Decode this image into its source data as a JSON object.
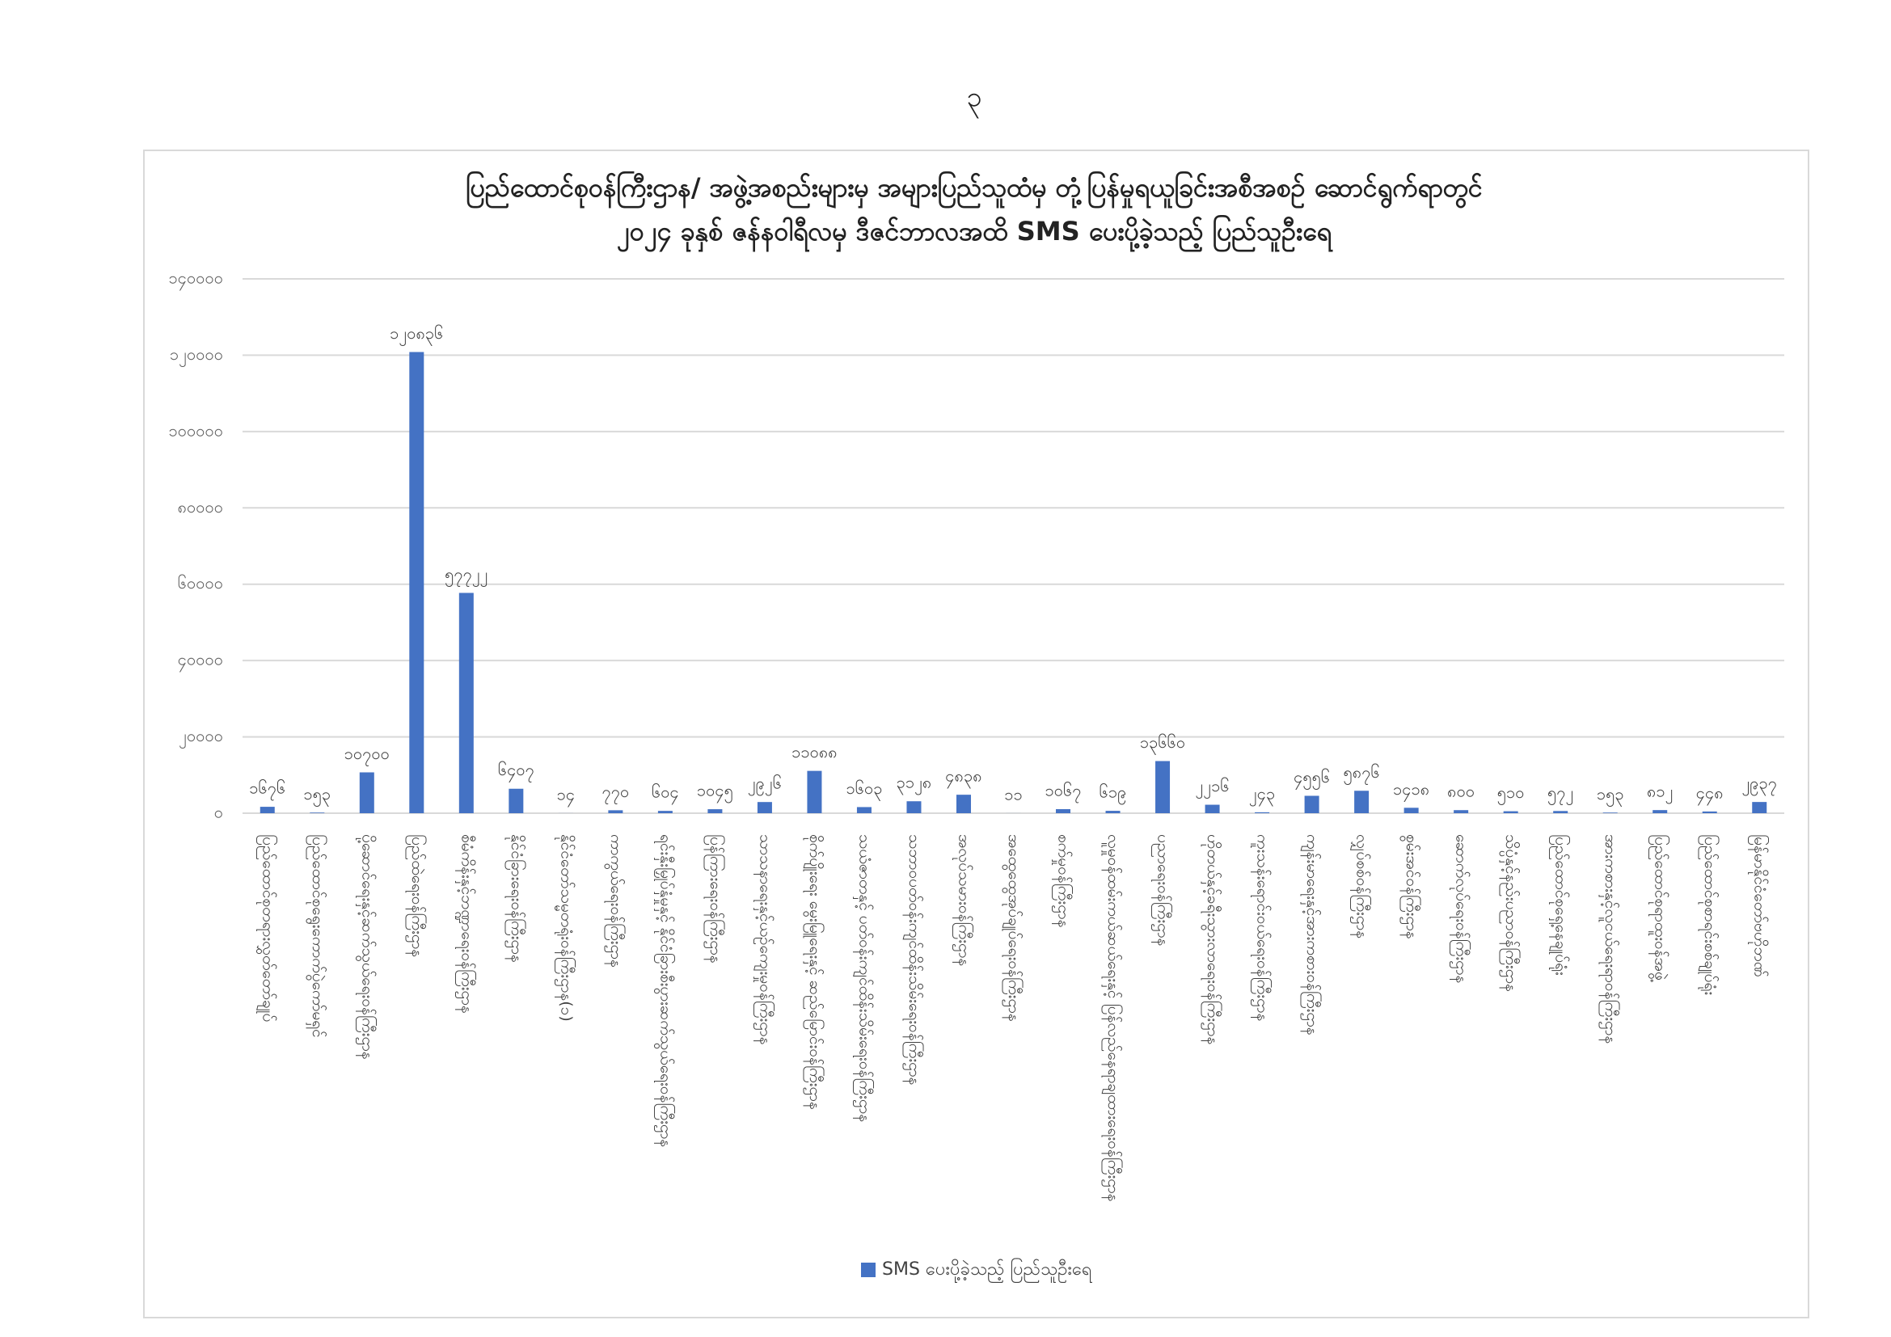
{
  "page_number": "၃",
  "chart_data": {
    "type": "bar",
    "title": "ပြည်ထောင်စုဝန်ကြီးဌာန/ အဖွဲ့အစည်းများမှ အများပြည်သူထံမှ တုံ့ပြန်မှုရယူခြင်းအစီအစဉ် ဆောင်ရွက်ရာတွင်",
    "subtitle": "၂၀၂၄ ခုနှစ် ဇန်နဝါရီလမှ ဒီဇင်ဘာလအထိ SMS ပေးပို့ခဲ့သည့် ပြည်သူဦးရေ",
    "categories": [
      "ပြည်ထောင်စုတရားလွှတ်တော်ချုပ်",
      "ပြည်ထောင်စုရွေးကောက်ပွဲကော်မရှင်",
      "ပို့ဆောင်ရေးနှင့်ဆက်သွယ်ရေးဝန်ကြီးဌာန",
      "ပြည်ထဲရေးဝန်ကြီးဌာန",
      "စီမံကိန်းနှင့်ဘဏ္ဍာရေးဝန်ကြီးဌာန",
      "နိုင်ငံခြားရေးဝန်ကြီးဌာန",
      "နိုင်ငံတော်သမ္မတရုံးဝန်ကြီးဌာန(၁)",
      "ကာကွယ်ရေးဝန်ကြီးဌာန",
      "ရင်းနှီးမြှုပ်နှံမှုနှင့် နိုင်ငံခြားစီးပွားဆက်သွယ်ရေးဝန်ကြီးဌာန",
      "ပြန်ကြားရေးဝန်ကြီးဌာန",
      "သာသနာရေးနှင့်ယဉ်ကျေးမှုဝန်ကြီးဌာန",
      "စိုက်ပျိုးရေး မွေးမြူရေးနှင့် ဆည်မြောင်းဝန်ကြီးဌာန",
      "သယံဇာတနှင့် ပတ်ဝန်းကျင်ထိန်းသိမ်းရေးဝန်ကြီးဌာန",
      "သဘာဝပတ်ဝန်းကျင်ထိန်းသိမ်းရေးဝန်ကြီးဌာန",
      "အလုပ်သမားဝန်ကြီးဌာန",
      "အထွေထွေအုပ်ချုပ်ရေးဝန်ကြီးဌာန",
      "စက်မှုဝန်ကြီးဌာန",
      "လူမှုဝန်ထမ်းကယ်ဆယ်ရေးနှင့် ပြန်လည်နေရာချထားရေးဝန်ကြီးဌာန",
      "ပညာရေးဝန်ကြီးဌာန",
      "ဟိုတယ်နှင့်ခရီးသွားလာရေးဝန်ကြီးဌာန",
      "ကူးသန်းရောင်းဝယ်ရေးဝန်ကြီးဌာန",
      "ကျန်းမာရေးနှင့်အားကစားဝန်ကြီးဌာန",
      "လျှပ်စစ်ဝန်ကြီးဌာန",
      "စွမ်းအင်ဝန်ကြီးဌာန",
      "ဆောက်လုပ်ရေးဝန်ကြီးဌာန",
      "သိပ္ပံနှင့်နည်းပညာဝန်ကြီးဌာန",
      "ပြည်ထောင်စုရှေ့နေချုပ်ရုံး",
      "အားကစားနှင့်လူငယ်ရေးရာဝန်ကြီးဌာန",
      "ပြည်ထောင်စုရာထူးဝန်အဖွဲ့",
      "ပြည်ထောင်စုစာရင်းစစ်ချုပ်ရုံး",
      "မြန်မာနိုင်ငံတော်ဗဟိုဘဏ်"
    ],
    "series": [
      {
        "name": "SMS ပေးပို့ခဲ့သည့် ပြည်သူဦးရေ",
        "color": "#4472c4",
        "values": [
          1676,
          153,
          10700,
          120836,
          57722,
          6407,
          14,
          770,
          604,
          1045,
          2926,
          11088,
          1603,
          3128,
          4838,
          11,
          1067,
          619,
          13660,
          2216,
          243,
          4556,
          5876,
          1418,
          800,
          510,
          572,
          153,
          812,
          448,
          2937
        ],
        "value_labels": [
          "၁၆၇၆",
          "၁၅၃",
          "၁၀၇၀၀",
          "၁၂၀၈၃၆",
          "၅၇၇၂၂",
          "၆၄၀၇",
          "၁၄",
          "၇၇၀",
          "၆၀၄",
          "၁၀၄၅",
          "၂၉၂၆",
          "၁၁၀၈၈",
          "၁၆၀၃",
          "၃၁၂၈",
          "၄၈၃၈",
          "၁၁",
          "၁၀၆၇",
          "၆၁၉",
          "၁၃၆၆၀",
          "၂၂၁၆",
          "၂၄၃",
          "၄၅၅၆",
          "၅၈၇၆",
          "၁၄၁၈",
          "၈၀၀",
          "၅၁၀",
          "၅၇၂",
          "၁၅၃",
          "၈၁၂",
          "၄၄၈",
          "၂၉၃၇"
        ]
      }
    ],
    "ylim": [
      0,
      140000
    ],
    "yticks": [
      {
        "value": 0,
        "label": "၀"
      },
      {
        "value": 20000,
        "label": "၂၀၀၀၀"
      },
      {
        "value": 40000,
        "label": "၄၀၀၀၀"
      },
      {
        "value": 60000,
        "label": "၆၀၀၀၀"
      },
      {
        "value": 80000,
        "label": "၈၀၀၀၀"
      },
      {
        "value": 100000,
        "label": "၁၀၀၀၀၀"
      },
      {
        "value": 120000,
        "label": "၁၂၀၀၀၀"
      },
      {
        "value": 140000,
        "label": "၁၄၀၀၀၀"
      }
    ],
    "grid": true,
    "legend": "bottom"
  }
}
